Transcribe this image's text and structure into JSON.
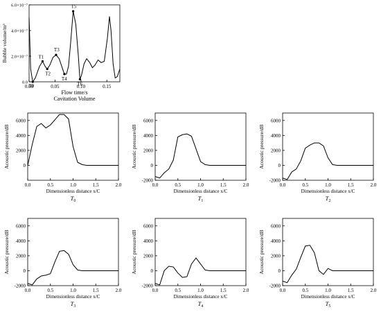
{
  "chart_data": [
    {
      "id": "volume",
      "type": "line",
      "title": "Cavitation Volume",
      "xlabel": "Flow time/s",
      "ylabel": "Bubble volume/m³",
      "xlim": [
        0,
        0.175
      ],
      "ylim": [
        0,
        6e-07
      ],
      "xticks": [
        0.0,
        0.05,
        0.1,
        0.15
      ],
      "xtick_labels": [
        "0.00",
        "0.05",
        "0.10",
        "0.15"
      ],
      "yticks": [
        0,
        2e-07,
        4e-07,
        6e-07
      ],
      "ytick_labels": [
        "0.0",
        "2.0×10⁻⁷",
        "4.0×10⁻⁷",
        "6.0×10⁻⁷"
      ],
      "x": [
        0.0,
        0.003,
        0.007,
        0.012,
        0.02,
        0.026,
        0.031,
        0.035,
        0.04,
        0.046,
        0.052,
        0.058,
        0.063,
        0.068,
        0.072,
        0.076,
        0.08,
        0.085,
        0.09,
        0.095,
        0.098,
        0.101,
        0.106,
        0.111,
        0.117,
        0.122,
        0.127,
        0.133,
        0.139,
        0.145,
        0.151,
        0.155,
        0.158,
        0.162,
        0.166,
        0.17,
        0.175
      ],
      "y": [
        5e-07,
        1e-07,
        0.0,
        3e-08,
        1.2e-07,
        1.6e-07,
        1.2e-07,
        1e-07,
        1.3e-07,
        1.9e-07,
        2.1e-07,
        1.8e-07,
        1.2e-07,
        6e-08,
        6e-08,
        1.2e-07,
        3e-07,
        5.5e-07,
        4.5e-07,
        2e-07,
        2e-08,
        5e-08,
        1.4e-07,
        1.8e-07,
        1.5e-07,
        1.1e-07,
        1.3e-07,
        1.7e-07,
        1.5e-07,
        1.6e-07,
        3.4e-07,
        5.1e-07,
        4e-07,
        1.4e-07,
        3e-08,
        4e-08,
        1e-07
      ],
      "markers": [
        {
          "label": "T0",
          "x": 0.007,
          "y": 0.0
        },
        {
          "label": "T1",
          "x": 0.026,
          "y": 1.6e-07
        },
        {
          "label": "T2",
          "x": 0.035,
          "y": 1e-07
        },
        {
          "label": "T3",
          "x": 0.052,
          "y": 2.1e-07
        },
        {
          "label": "T4",
          "x": 0.068,
          "y": 6e-08
        },
        {
          "label": "T5",
          "x": 0.085,
          "y": 5.5e-07
        },
        {
          "label": "T6",
          "x": 0.098,
          "y": 2e-08
        }
      ]
    },
    {
      "id": "p0",
      "type": "line",
      "title": "T0",
      "xlabel": "Dimensionless distance x/C",
      "ylabel": "Acoustic pressure/dB",
      "xlim": [
        0,
        2.0
      ],
      "ylim": [
        -2000,
        7000
      ],
      "xtick_labels": [
        "0.0",
        "0.5",
        "1.0",
        "1.5",
        "2.0"
      ],
      "ytick_labels": [
        "0",
        "2000",
        "4000",
        "6000"
      ],
      "x": [
        0.0,
        0.1,
        0.2,
        0.3,
        0.4,
        0.5,
        0.6,
        0.7,
        0.8,
        0.9,
        1.0,
        1.1,
        1.2,
        1.3,
        1.4,
        1.5,
        1.6,
        1.7,
        1.8,
        1.9,
        2.0
      ],
      "y": [
        0,
        2800,
        5200,
        5600,
        5000,
        5400,
        6100,
        6800,
        6800,
        6200,
        2500,
        400,
        100,
        0,
        0,
        0,
        0,
        0,
        0,
        0,
        0
      ]
    },
    {
      "id": "p1",
      "type": "line",
      "title": "T1",
      "xlabel": "Dimensionless distance x/C",
      "ylabel": "Acoustic pressure/dB",
      "xlim": [
        0,
        2.0
      ],
      "ylim": [
        -2000,
        7000
      ],
      "xtick_labels": [
        "0.0",
        "0.5",
        "1.0",
        "1.5",
        "2.0"
      ],
      "ytick_labels": [
        "-2000",
        "0",
        "2000",
        "4000",
        "6000"
      ],
      "x": [
        0.0,
        0.1,
        0.2,
        0.3,
        0.4,
        0.5,
        0.6,
        0.7,
        0.8,
        0.9,
        1.0,
        1.1,
        1.2,
        1.3,
        1.4,
        1.5,
        1.6,
        1.7,
        1.8,
        1.9,
        2.0
      ],
      "y": [
        -1500,
        -1700,
        -1000,
        -500,
        700,
        3800,
        4100,
        4200,
        3900,
        2200,
        500,
        100,
        0,
        0,
        0,
        0,
        0,
        0,
        0,
        0,
        0
      ]
    },
    {
      "id": "p2",
      "type": "line",
      "title": "T2",
      "xlabel": "Dimensionless distance x/C",
      "ylabel": "Acoustic pressure/dB",
      "xlim": [
        0,
        2.0
      ],
      "ylim": [
        -2000,
        7000
      ],
      "xtick_labels": [
        "0.0",
        "0.5",
        "1.0",
        "1.5",
        "2.0"
      ],
      "ytick_labels": [
        "-2000",
        "0",
        "2000",
        "4000",
        "6000"
      ],
      "x": [
        0.0,
        0.1,
        0.2,
        0.3,
        0.4,
        0.5,
        0.6,
        0.7,
        0.8,
        0.9,
        1.0,
        1.1,
        1.2,
        1.3,
        1.4,
        1.5,
        1.6,
        1.7,
        1.8,
        1.9,
        2.0
      ],
      "y": [
        -1700,
        -1900,
        -900,
        -500,
        600,
        2300,
        2700,
        3000,
        3000,
        2600,
        1000,
        100,
        0,
        0,
        0,
        0,
        0,
        0,
        0,
        0,
        0
      ]
    },
    {
      "id": "p3",
      "type": "line",
      "title": "T3",
      "xlabel": "Dimensionless distance x/C",
      "ylabel": "Acoustic pressure/dB",
      "xlim": [
        0,
        2.0
      ],
      "ylim": [
        -2000,
        7000
      ],
      "xtick_labels": [
        "0.0",
        "0.5",
        "1.0",
        "1.5",
        "2.0"
      ],
      "ytick_labels": [
        "-2000",
        "0",
        "2000",
        "4000",
        "6000"
      ],
      "x": [
        0.0,
        0.1,
        0.2,
        0.3,
        0.4,
        0.5,
        0.6,
        0.7,
        0.8,
        0.9,
        1.0,
        1.1,
        1.2,
        1.3,
        1.4,
        1.5,
        1.6,
        1.7,
        1.8,
        1.9,
        2.0
      ],
      "y": [
        -1700,
        -1900,
        -1100,
        -700,
        -600,
        -400,
        1200,
        2600,
        2700,
        2200,
        800,
        100,
        0,
        0,
        0,
        0,
        0,
        0,
        0,
        0,
        0
      ]
    },
    {
      "id": "p4",
      "type": "line",
      "title": "T4",
      "xlabel": "Dimensionless distance x/C",
      "ylabel": "Acoustic pressure/dB",
      "xlim": [
        0,
        2.0
      ],
      "ylim": [
        -2000,
        7000
      ],
      "xtick_labels": [
        "0.0",
        "0.5",
        "1.0",
        "1.5",
        "2.0"
      ],
      "ytick_labels": [
        "-2000",
        "0",
        "2000",
        "4000",
        "6000"
      ],
      "x": [
        0.0,
        0.1,
        0.2,
        0.3,
        0.4,
        0.5,
        0.6,
        0.7,
        0.8,
        0.9,
        1.0,
        1.1,
        1.2,
        1.3,
        1.4,
        1.5,
        1.6,
        1.7,
        1.8,
        1.9,
        2.0
      ],
      "y": [
        -1700,
        -1900,
        0,
        600,
        500,
        -300,
        -900,
        -800,
        900,
        1700,
        900,
        100,
        0,
        0,
        0,
        0,
        0,
        0,
        0,
        0,
        0
      ]
    },
    {
      "id": "p5",
      "type": "line",
      "title": "T5",
      "xlabel": "Dimensionless distance x/C",
      "ylabel": "Acoustic pressure/dB",
      "xlim": [
        0,
        2.0
      ],
      "ylim": [
        -2000,
        7000
      ],
      "xtick_labels": [
        "0.0",
        "0.5",
        "1.0",
        "1.5",
        "2.0"
      ],
      "ytick_labels": [
        "-2000",
        "0",
        "2000",
        "4000",
        "6000"
      ],
      "x": [
        0.0,
        0.1,
        0.2,
        0.3,
        0.4,
        0.5,
        0.6,
        0.7,
        0.8,
        0.9,
        1.0,
        1.1,
        1.2,
        1.3,
        1.4,
        1.5,
        1.6,
        1.7,
        1.8,
        1.9,
        2.0
      ],
      "y": [
        -1400,
        -1600,
        -600,
        200,
        1800,
        3300,
        3400,
        2400,
        0,
        -500,
        300,
        0,
        0,
        0,
        0,
        0,
        0,
        0,
        0,
        0,
        0
      ]
    }
  ]
}
